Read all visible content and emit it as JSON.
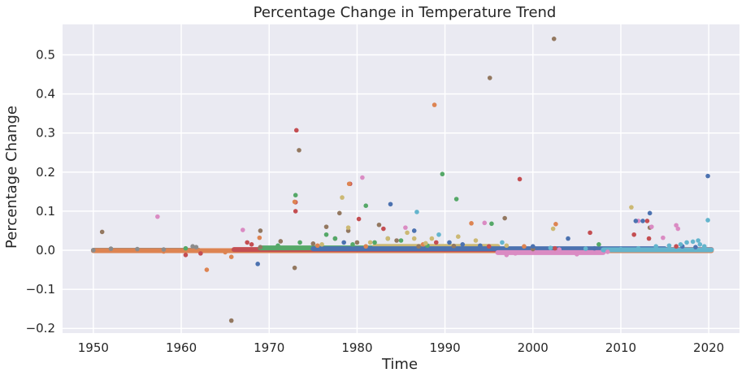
{
  "chart_data": {
    "type": "scatter",
    "title": "Percentage Change in Temperature Trend",
    "xlabel": "Time",
    "ylabel": "Percentage Change",
    "xlim": [
      1946.5,
      2023.5
    ],
    "ylim": [
      -0.212,
      0.578
    ],
    "x_ticks": [
      1950,
      1960,
      1970,
      1980,
      1990,
      2000,
      2010,
      2020
    ],
    "y_ticks": [
      -0.2,
      -0.1,
      0.0,
      0.1,
      0.2,
      0.3,
      0.4,
      0.5
    ],
    "y_tick_labels": [
      "−0.2",
      "−0.1",
      "0.0",
      "0.1",
      "0.2",
      "0.3",
      "0.4",
      "0.5"
    ],
    "grid": true,
    "background": "#eaeaf2",
    "bands": [
      {
        "color": "#8c8c8c",
        "x0": 1950.0,
        "x1": 1962.0,
        "y": 0.0
      },
      {
        "color": "#dd8452",
        "x0": 1950.0,
        "x1": 2020.3,
        "y": -0.001
      },
      {
        "color": "#c44e52",
        "x0": 1966.0,
        "x1": 2020.3,
        "y": 0.002
      },
      {
        "color": "#55a868",
        "x0": 1969.0,
        "x1": 1990.0,
        "y": 0.006
      },
      {
        "color": "#ccb974",
        "x0": 1982.0,
        "x1": 1996.0,
        "y": 0.01
      },
      {
        "color": "#4c72b0",
        "x0": 1975.0,
        "x1": 2015.0,
        "y": 0.004
      },
      {
        "color": "#da8bc3",
        "x0": 1996.0,
        "x1": 2008.0,
        "y": -0.006
      },
      {
        "color": "#64b5cd",
        "x0": 2008.0,
        "x1": 2020.3,
        "y": 0.001
      }
    ],
    "series": [
      {
        "color": "#c44e52",
        "points": [
          [
            1973.1,
            0.307
          ],
          [
            1973.0,
            0.123
          ],
          [
            1973.0,
            0.1
          ],
          [
            1979.2,
            0.17
          ],
          [
            1980.2,
            0.08
          ],
          [
            1998.5,
            0.182
          ],
          [
            1967.5,
            0.02
          ],
          [
            1983.0,
            0.055
          ],
          [
            1962.2,
            -0.008
          ],
          [
            1989.0,
            0.02
          ],
          [
            2006.5,
            0.045
          ],
          [
            2011.5,
            0.04
          ],
          [
            2013.0,
            0.075
          ],
          [
            2013.2,
            0.03
          ],
          [
            2016.3,
            0.01
          ],
          [
            2002.5,
            0.005
          ],
          [
            1995.0,
            0.01
          ],
          [
            1960.5,
            -0.012
          ],
          [
            1968.0,
            0.015
          ]
        ]
      },
      {
        "color": "#937860",
        "points": [
          [
            1973.4,
            0.256
          ],
          [
            1995.1,
            0.441
          ],
          [
            2002.4,
            0.541
          ],
          [
            1972.9,
            -0.045
          ],
          [
            1965.7,
            -0.18
          ],
          [
            1951.0,
            0.047
          ],
          [
            1969.0,
            0.05
          ],
          [
            1976.5,
            0.06
          ],
          [
            1978.0,
            0.095
          ],
          [
            1979.0,
            0.05
          ],
          [
            1982.5,
            0.065
          ],
          [
            1987.0,
            0.01
          ],
          [
            1996.8,
            0.082
          ],
          [
            2013.3,
            0.058
          ],
          [
            1980.0,
            0.02
          ],
          [
            1984.5,
            0.025
          ],
          [
            1971.3,
            0.023
          ],
          [
            1975.0,
            0.017
          ],
          [
            1991.0,
            0.011
          ],
          [
            2000.0,
            0.003
          ],
          [
            1977.5,
            0.03
          ],
          [
            1969.0,
            0.008
          ]
        ]
      },
      {
        "color": "#dd8452",
        "points": [
          [
            1988.8,
            0.372
          ],
          [
            1972.9,
            0.124
          ],
          [
            1979.1,
            0.17
          ],
          [
            2002.6,
            0.067
          ],
          [
            1993.0,
            0.069
          ],
          [
            1962.9,
            -0.05
          ],
          [
            1965.7,
            -0.017
          ],
          [
            1968.9,
            0.032
          ],
          [
            1981.0,
            0.01
          ],
          [
            1987.5,
            0.015
          ],
          [
            1999.0,
            0.01
          ],
          [
            1958.0,
            -0.003
          ],
          [
            1965.0,
            -0.005
          ],
          [
            1975.5,
            0.012
          ]
        ]
      },
      {
        "color": "#da8bc3",
        "points": [
          [
            1957.3,
            0.086
          ],
          [
            1980.6,
            0.186
          ],
          [
            1967.0,
            0.052
          ],
          [
            1985.5,
            0.058
          ],
          [
            1994.5,
            0.07
          ],
          [
            2013.5,
            0.06
          ],
          [
            2016.3,
            0.064
          ],
          [
            2016.5,
            0.055
          ],
          [
            2012.0,
            0.075
          ],
          [
            2003.0,
            0.002
          ],
          [
            1998.0,
            -0.008
          ],
          [
            1997.0,
            -0.012
          ],
          [
            2005.0,
            -0.01
          ],
          [
            2014.8,
            0.032
          ],
          [
            2008.5,
            -0.004
          ]
        ]
      },
      {
        "color": "#55a868",
        "points": [
          [
            1973.0,
            0.141
          ],
          [
            1989.7,
            0.195
          ],
          [
            1991.3,
            0.131
          ],
          [
            1981.0,
            0.114
          ],
          [
            1995.3,
            0.068
          ],
          [
            1976.5,
            0.04
          ],
          [
            1982.0,
            0.02
          ],
          [
            1985.0,
            0.025
          ],
          [
            1977.5,
            0.03
          ],
          [
            1973.5,
            0.02
          ],
          [
            1988.0,
            0.012
          ],
          [
            2007.5,
            0.015
          ],
          [
            1971.0,
            0.012
          ],
          [
            1960.5,
            0.005
          ],
          [
            1983.5,
            0.03
          ],
          [
            1979.5,
            0.015
          ]
        ]
      },
      {
        "color": "#ccb974",
        "points": [
          [
            1978.3,
            0.135
          ],
          [
            1979.0,
            0.058
          ],
          [
            1983.5,
            0.03
          ],
          [
            1988.5,
            0.03
          ],
          [
            2011.2,
            0.11
          ],
          [
            2002.3,
            0.055
          ],
          [
            1985.7,
            0.045
          ],
          [
            1991.5,
            0.035
          ],
          [
            1981.5,
            0.02
          ],
          [
            1993.5,
            0.025
          ],
          [
            1987.8,
            0.018
          ],
          [
            1976.0,
            0.015
          ],
          [
            1997.0,
            0.012
          ],
          [
            1986.5,
            0.03
          ]
        ]
      },
      {
        "color": "#4c72b0",
        "points": [
          [
            1983.8,
            0.118
          ],
          [
            1968.7,
            -0.035
          ],
          [
            2019.9,
            0.19
          ],
          [
            2013.3,
            0.095
          ],
          [
            1990.5,
            0.02
          ],
          [
            1986.5,
            0.05
          ],
          [
            1994.0,
            0.012
          ],
          [
            2004.0,
            0.03
          ],
          [
            2007.0,
            0.005
          ],
          [
            2012.5,
            0.075
          ],
          [
            2011.7,
            0.075
          ],
          [
            2000.0,
            0.01
          ],
          [
            1992.0,
            0.015
          ],
          [
            1978.5,
            0.02
          ],
          [
            2017.0,
            0.01
          ],
          [
            2018.5,
            0.008
          ]
        ]
      },
      {
        "color": "#64b5cd",
        "points": [
          [
            1986.8,
            0.098
          ],
          [
            2019.9,
            0.077
          ],
          [
            1989.3,
            0.04
          ],
          [
            1996.5,
            0.02
          ],
          [
            2017.5,
            0.02
          ],
          [
            2018.2,
            0.022
          ],
          [
            2018.8,
            0.025
          ],
          [
            2019.0,
            0.015
          ],
          [
            2016.8,
            0.015
          ],
          [
            2015.5,
            0.012
          ],
          [
            2014.0,
            0.01
          ],
          [
            2012.0,
            0.005
          ],
          [
            2010.0,
            0.003
          ],
          [
            2006.0,
            0.004
          ],
          [
            2002.0,
            0.006
          ],
          [
            2019.5,
            0.01
          ]
        ]
      },
      {
        "color": "#8c8c8c",
        "points": [
          [
            1961.3,
            0.01
          ],
          [
            1961.7,
            0.008
          ],
          [
            1955.0,
            0.003
          ],
          [
            1952.0,
            0.004
          ],
          [
            1958.0,
            0.002
          ],
          [
            1950.0,
            0.0
          ]
        ]
      }
    ]
  }
}
